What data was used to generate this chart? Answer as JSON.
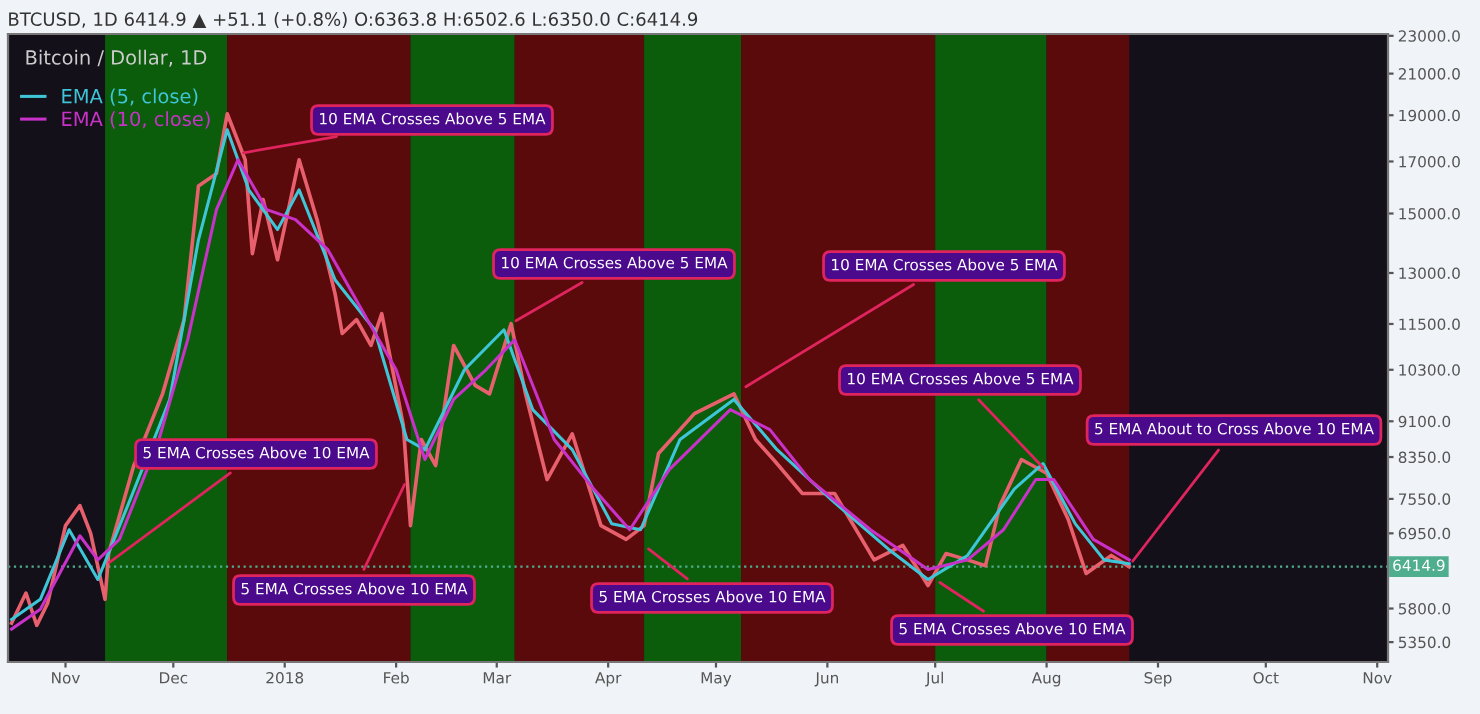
{
  "chart_data": {
    "type": "line",
    "title": "Bitcoin / Dollar, 1D",
    "subtitle": "BTCUSD, 1D 6414.9 ▲ +51.1 (+0.8%) O:6363.8 H:6502.6 L:6350.0 C:6414.9",
    "log": "y",
    "legend": "top left",
    "xlim": [
      "2017-10-16",
      "2018-11-04"
    ],
    "ylim": [
      5100,
      23100
    ],
    "xticks": [
      {
        "value": "2017-11-01",
        "label": "Nov"
      },
      {
        "value": "2017-12-01",
        "label": "Dec"
      },
      {
        "value": "2018-01-01",
        "label": "2018"
      },
      {
        "value": "2018-02-01",
        "label": "Feb"
      },
      {
        "value": "2018-03-01",
        "label": "Mar"
      },
      {
        "value": "2018-04-01",
        "label": "Apr"
      },
      {
        "value": "2018-05-01",
        "label": "May"
      },
      {
        "value": "2018-06-01",
        "label": "Jun"
      },
      {
        "value": "2018-07-01",
        "label": "Jul"
      },
      {
        "value": "2018-08-01",
        "label": "Aug"
      },
      {
        "value": "2018-09-01",
        "label": "Sep"
      },
      {
        "value": "2018-10-01",
        "label": "Oct"
      },
      {
        "value": "2018-11-01",
        "label": "Nov"
      }
    ],
    "yticks": [
      {
        "value": 5350,
        "label": "5350.0"
      },
      {
        "value": 5800,
        "label": "5800.0"
      },
      {
        "value": 6950,
        "label": "6950.0"
      },
      {
        "value": 7550,
        "label": "7550.0"
      },
      {
        "value": 8350,
        "label": "8350.0"
      },
      {
        "value": 9100,
        "label": "9100.0"
      },
      {
        "value": 10300,
        "label": "10300.0"
      },
      {
        "value": 11500,
        "label": "11500.0"
      },
      {
        "value": 13000,
        "label": "13000.0"
      },
      {
        "value": 15000,
        "label": "15000.0"
      },
      {
        "value": 17000,
        "label": "17000.0"
      },
      {
        "value": 19000,
        "label": "19000.0"
      },
      {
        "value": 21000,
        "label": "21000.0"
      },
      {
        "value": 23000,
        "label": "23000.0"
      }
    ],
    "bands": [
      {
        "axis": "x",
        "from": "2017-11-12",
        "to": "2017-12-16",
        "color": "#0b5c0b"
      },
      {
        "axis": "x",
        "from": "2017-12-16",
        "to": "2018-02-05",
        "color": "#5a0a0a"
      },
      {
        "axis": "x",
        "from": "2018-02-05",
        "to": "2018-03-06",
        "color": "#0b5c0b"
      },
      {
        "axis": "x",
        "from": "2018-03-06",
        "to": "2018-04-11",
        "color": "#5a0a0a"
      },
      {
        "axis": "x",
        "from": "2018-04-11",
        "to": "2018-05-08",
        "color": "#0b5c0b"
      },
      {
        "axis": "x",
        "from": "2018-05-08",
        "to": "2018-07-01",
        "color": "#5a0a0a"
      },
      {
        "axis": "x",
        "from": "2018-07-01",
        "to": "2018-08-01",
        "color": "#0b5c0b"
      },
      {
        "axis": "x",
        "from": "2018-08-01",
        "to": "2018-08-24",
        "color": "#5a0a0a"
      }
    ],
    "ref_lines": [
      {
        "axis": "y",
        "value": 6414.9,
        "label": "6414.9",
        "color": "#4fae8e",
        "line_style": "dotted"
      }
    ],
    "series": [
      {
        "color": "#e8606e",
        "x": [
          "2017-10-17",
          "2017-10-21",
          "2017-10-24",
          "2017-10-27",
          "2017-11-01",
          "2017-11-05",
          "2017-11-08",
          "2017-11-12",
          "2017-11-13",
          "2017-11-20",
          "2017-11-28",
          "2017-12-04",
          "2017-12-08",
          "2017-12-13",
          "2017-12-16",
          "2017-12-21",
          "2017-12-23",
          "2017-12-26",
          "2017-12-30",
          "2018-01-05",
          "2018-01-10",
          "2018-01-15",
          "2018-01-17",
          "2018-01-21",
          "2018-01-25",
          "2018-01-28",
          "2018-02-03",
          "2018-02-05",
          "2018-02-08",
          "2018-02-12",
          "2018-02-17",
          "2018-02-23",
          "2018-02-27",
          "2018-03-05",
          "2018-03-09",
          "2018-03-15",
          "2018-03-22",
          "2018-03-30",
          "2018-04-06",
          "2018-04-11",
          "2018-04-15",
          "2018-04-25",
          "2018-05-06",
          "2018-05-12",
          "2018-05-17",
          "2018-05-25",
          "2018-06-03",
          "2018-06-14",
          "2018-06-22",
          "2018-06-29",
          "2018-07-04",
          "2018-07-10",
          "2018-07-15",
          "2018-07-19",
          "2018-07-25",
          "2018-08-01",
          "2018-08-07",
          "2018-08-12",
          "2018-08-19",
          "2018-08-24"
        ],
        "values": [
          5600,
          6020,
          5570,
          5870,
          7080,
          7430,
          6950,
          5930,
          6620,
          8180,
          9720,
          11620,
          16030,
          16510,
          19070,
          17070,
          13620,
          15510,
          13420,
          17070,
          14780,
          12370,
          11240,
          11620,
          10920,
          11790,
          9010,
          7080,
          8710,
          8180,
          10920,
          9920,
          9720,
          11510,
          9720,
          7910,
          8830,
          7080,
          6850,
          7080,
          8420,
          9270,
          9720,
          8710,
          8300,
          7650,
          7650,
          6520,
          6750,
          6130,
          6620,
          6520,
          6430,
          7430,
          8300,
          8030,
          7190,
          6310,
          6590,
          6414.9
        ]
      },
      {
        "name": "EMA (5, close)",
        "color": "#3ec6d8",
        "x": [
          "2017-10-17",
          "2017-10-25",
          "2017-11-02",
          "2017-11-10",
          "2017-11-19",
          "2017-11-30",
          "2017-12-08",
          "2017-12-16",
          "2017-12-22",
          "2017-12-30",
          "2018-01-05",
          "2018-01-15",
          "2018-01-26",
          "2018-02-04",
          "2018-02-09",
          "2018-02-20",
          "2018-03-03",
          "2018-03-11",
          "2018-03-22",
          "2018-04-02",
          "2018-04-10",
          "2018-04-21",
          "2018-05-06",
          "2018-05-18",
          "2018-06-02",
          "2018-06-18",
          "2018-06-29",
          "2018-07-10",
          "2018-07-23",
          "2018-07-31",
          "2018-08-09",
          "2018-08-17",
          "2018-08-24"
        ],
        "values": [
          5650,
          5930,
          7010,
          6220,
          7540,
          9590,
          14080,
          18350,
          15880,
          14430,
          15880,
          12790,
          11340,
          8710,
          8500,
          10300,
          11340,
          9360,
          8500,
          7110,
          7010,
          8710,
          9590,
          8500,
          7540,
          6690,
          6220,
          6590,
          7730,
          8220,
          7110,
          6520,
          6460
        ]
      },
      {
        "name": "EMA (10, close)",
        "color": "#c832c8",
        "x": [
          "2017-10-17",
          "2017-10-25",
          "2017-11-05",
          "2017-11-10",
          "2017-11-16",
          "2017-11-27",
          "2017-12-05",
          "2017-12-13",
          "2017-12-19",
          "2017-12-27",
          "2018-01-04",
          "2018-01-13",
          "2018-01-24",
          "2018-02-01",
          "2018-02-09",
          "2018-02-17",
          "2018-02-26",
          "2018-03-06",
          "2018-03-17",
          "2018-03-28",
          "2018-04-07",
          "2018-04-18",
          "2018-05-05",
          "2018-05-16",
          "2018-05-27",
          "2018-06-13",
          "2018-06-29",
          "2018-07-10",
          "2018-07-20",
          "2018-07-29",
          "2018-08-03",
          "2018-08-14",
          "2018-08-24"
        ],
        "values": [
          5520,
          5790,
          6910,
          6520,
          6850,
          8710,
          11070,
          15140,
          17070,
          15140,
          14780,
          13750,
          11620,
          10300,
          8300,
          9590,
          10300,
          11070,
          8710,
          7730,
          7010,
          8100,
          9360,
          8920,
          7910,
          7010,
          6370,
          6520,
          7010,
          7910,
          7910,
          6850,
          6520
        ]
      }
    ],
    "annotations": [
      {
        "text": "10 EMA Crosses Above 5 EMA",
        "x": "2017-12-19",
        "y": 17320
      },
      {
        "text": "5 EMA Crosses Above 10 EMA",
        "x": "2017-11-12",
        "y": 6430
      },
      {
        "text": "5 EMA Crosses Above 10 EMA",
        "x": "2018-02-04",
        "y": 7910
      },
      {
        "text": "10 EMA Crosses Above 5 EMA",
        "x": "2018-03-05",
        "y": 11510
      },
      {
        "text": "5 EMA Crosses Above 10 EMA",
        "x": "2018-04-11",
        "y": 6750
      },
      {
        "text": "10 EMA Crosses Above 5 EMA",
        "x": "2018-05-08",
        "y": 9820
      },
      {
        "text": "10 EMA Crosses Above 5 EMA",
        "x": "2018-08-01",
        "y": 8070
      },
      {
        "text": "5 EMA Crosses Above 10 EMA",
        "x": "2018-07-01",
        "y": 6220
      },
      {
        "text": "5 EMA About to Cross Above 10 EMA",
        "x": "2018-08-24",
        "y": 6430
      }
    ]
  }
}
